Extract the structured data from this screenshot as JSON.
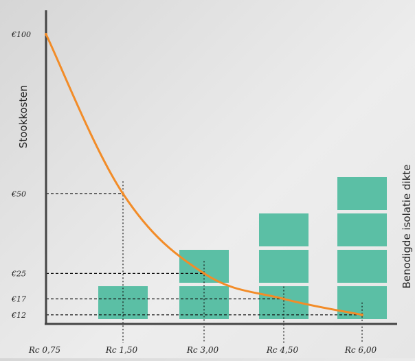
{
  "chart_data": {
    "type": "line",
    "title": "",
    "ylabel": "Stookkosten",
    "y2label": "Benodigde isolatie dikte",
    "x": [
      "Rc 0,75",
      "Rc 1,50",
      "Rc 3,00",
      "Rc 4,50",
      "Rc 6,00"
    ],
    "y_tick_labels": [
      "€100",
      "€50",
      "€25",
      "€17",
      "€12"
    ],
    "y_ticks": [
      100,
      50,
      25,
      17,
      12
    ],
    "series": [
      {
        "values": [
          100,
          50,
          25,
          17,
          12
        ]
      }
    ],
    "insulation_blocks": [
      0,
      1,
      2,
      3,
      4
    ],
    "ylim": [
      0,
      103
    ],
    "grid": false,
    "colors": {
      "line": "#f28c28",
      "block": "#5bbfa5",
      "axis": "#444444",
      "guide": "#111111"
    }
  }
}
